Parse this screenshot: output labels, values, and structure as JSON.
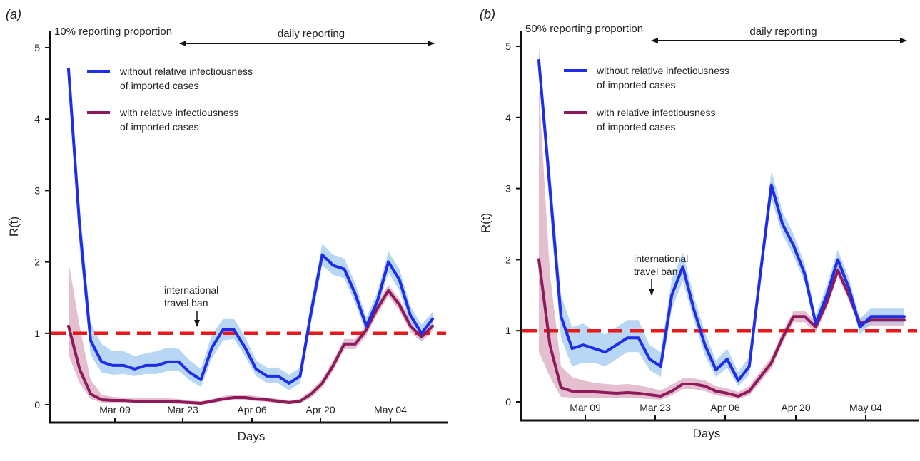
{
  "chart_data": [
    {
      "type": "line",
      "panel_label": "a",
      "title": "10% reporting proportion",
      "xlabel": "Days",
      "ylabel": "R(t)",
      "x_ticks": [
        "Mar 09",
        "Mar 23",
        "Apr 06",
        "Apr 20",
        "May 04"
      ],
      "y_ticks": [
        0,
        1,
        2,
        3,
        4,
        5
      ],
      "ylim": [
        0,
        5
      ],
      "x": [
        0,
        2,
        4,
        6,
        8,
        10,
        12,
        14,
        16,
        18,
        20,
        22,
        24,
        26,
        28,
        30,
        32,
        34,
        36,
        38,
        40,
        42,
        44,
        46,
        48,
        50,
        52,
        54,
        56,
        58,
        60,
        62,
        64,
        66
      ],
      "reference_line": {
        "y": 1,
        "style": "dashed",
        "color": "#e8191b"
      },
      "annotations": [
        {
          "text_lines": [
            "international",
            "travel ban"
          ],
          "x": 23
        },
        {
          "text": "daily reporting",
          "x_from": 23,
          "x_to": 65,
          "style": "double-arrow"
        }
      ],
      "series": [
        {
          "name_lines": [
            "without relative infectiousness",
            "of imported cases"
          ],
          "color": "#1f2de8",
          "band_color": "#9fcaf0",
          "values": [
            4.7,
            2.5,
            0.9,
            0.6,
            0.55,
            0.55,
            0.5,
            0.55,
            0.55,
            0.6,
            0.6,
            0.45,
            0.35,
            0.8,
            1.05,
            1.05,
            0.8,
            0.5,
            0.4,
            0.4,
            0.3,
            0.4,
            1.3,
            2.1,
            1.95,
            1.9,
            1.55,
            1.1,
            1.45,
            2.0,
            1.75,
            1.25,
            1.0,
            1.2
          ],
          "band_low": [
            4.5,
            2.2,
            0.7,
            0.45,
            0.42,
            0.43,
            0.4,
            0.43,
            0.43,
            0.47,
            0.47,
            0.34,
            0.25,
            0.65,
            0.9,
            0.92,
            0.68,
            0.4,
            0.3,
            0.3,
            0.2,
            0.3,
            1.15,
            1.95,
            1.82,
            1.77,
            1.42,
            1.0,
            1.33,
            1.85,
            1.6,
            1.12,
            0.9,
            1.1
          ],
          "band_high": [
            4.9,
            2.8,
            1.15,
            0.85,
            0.75,
            0.75,
            0.68,
            0.72,
            0.75,
            0.8,
            0.78,
            0.62,
            0.5,
            0.98,
            1.2,
            1.2,
            0.95,
            0.62,
            0.52,
            0.52,
            0.42,
            0.52,
            1.45,
            2.25,
            2.1,
            2.05,
            1.7,
            1.22,
            1.58,
            2.15,
            1.9,
            1.38,
            1.12,
            1.3
          ]
        },
        {
          "name_lines": [
            "with relative infectiousness",
            "of imported cases"
          ],
          "color": "#8e1a5c",
          "band_color": "#d9a9bf",
          "values": [
            1.1,
            0.5,
            0.15,
            0.07,
            0.06,
            0.06,
            0.05,
            0.05,
            0.05,
            0.05,
            0.04,
            0.03,
            0.02,
            0.05,
            0.08,
            0.1,
            0.1,
            0.08,
            0.07,
            0.05,
            0.03,
            0.05,
            0.15,
            0.3,
            0.55,
            0.85,
            0.85,
            1.05,
            1.35,
            1.6,
            1.4,
            1.1,
            0.95,
            1.1
          ],
          "band_low": [
            0.7,
            0.3,
            0.08,
            0.03,
            0.03,
            0.03,
            0.02,
            0.02,
            0.02,
            0.02,
            0.01,
            0.01,
            0.0,
            0.02,
            0.05,
            0.07,
            0.07,
            0.05,
            0.04,
            0.02,
            0.01,
            0.02,
            0.1,
            0.24,
            0.48,
            0.78,
            0.78,
            0.97,
            1.27,
            1.52,
            1.32,
            1.02,
            0.88,
            1.03
          ],
          "band_high": [
            2.0,
            1.1,
            0.35,
            0.14,
            0.11,
            0.1,
            0.09,
            0.09,
            0.09,
            0.09,
            0.08,
            0.06,
            0.05,
            0.08,
            0.12,
            0.14,
            0.14,
            0.12,
            0.1,
            0.08,
            0.06,
            0.08,
            0.2,
            0.36,
            0.62,
            0.92,
            0.92,
            1.13,
            1.43,
            1.68,
            1.48,
            1.18,
            1.02,
            1.17
          ]
        }
      ]
    },
    {
      "type": "line",
      "panel_label": "b",
      "title": "50% reporting proportion",
      "xlabel": "Days",
      "ylabel": "R(t)",
      "x_ticks": [
        "Mar 09",
        "Mar 23",
        "Apr 06",
        "Apr 20",
        "May 04"
      ],
      "y_ticks": [
        0,
        1,
        2,
        3,
        4,
        5
      ],
      "ylim": [
        0,
        5
      ],
      "x": [
        0,
        2,
        4,
        6,
        8,
        10,
        12,
        14,
        16,
        18,
        20,
        22,
        24,
        26,
        28,
        30,
        32,
        34,
        36,
        38,
        40,
        42,
        44,
        46,
        48,
        50,
        52,
        54,
        56,
        58,
        60,
        62,
        64,
        66
      ],
      "reference_line": {
        "y": 1,
        "style": "dashed",
        "color": "#e8191b"
      },
      "annotations": [
        {
          "text_lines": [
            "international",
            "travel ban"
          ],
          "x": 23
        },
        {
          "text": "daily reporting",
          "x_from": 23,
          "x_to": 65,
          "style": "double-arrow"
        }
      ],
      "series": [
        {
          "name_lines": [
            "without relative infectiousness",
            "of imported cases"
          ],
          "color": "#1f2de8",
          "band_color": "#9fcaf0",
          "values": [
            4.8,
            3.0,
            1.2,
            0.75,
            0.8,
            0.75,
            0.7,
            0.8,
            0.9,
            0.9,
            0.6,
            0.5,
            1.5,
            1.9,
            1.3,
            0.8,
            0.45,
            0.6,
            0.3,
            0.5,
            1.8,
            3.05,
            2.5,
            2.2,
            1.8,
            1.1,
            1.5,
            2.0,
            1.6,
            1.05,
            1.2,
            1.2,
            1.2,
            1.2
          ],
          "band_low": [
            4.6,
            2.7,
            0.9,
            0.5,
            0.55,
            0.55,
            0.5,
            0.6,
            0.7,
            0.7,
            0.45,
            0.35,
            1.3,
            1.7,
            1.15,
            0.65,
            0.35,
            0.48,
            0.22,
            0.38,
            1.65,
            2.85,
            2.35,
            2.05,
            1.68,
            1.0,
            1.38,
            1.86,
            1.48,
            0.95,
            1.1,
            1.1,
            1.1,
            1.1
          ],
          "band_high": [
            5.0,
            3.3,
            1.5,
            1.05,
            1.1,
            1.0,
            0.95,
            1.05,
            1.15,
            1.15,
            0.8,
            0.7,
            1.72,
            2.1,
            1.48,
            0.98,
            0.58,
            0.75,
            0.42,
            0.64,
            1.95,
            3.25,
            2.67,
            2.36,
            1.94,
            1.22,
            1.64,
            2.14,
            1.74,
            1.17,
            1.32,
            1.32,
            1.32,
            1.32
          ]
        },
        {
          "name_lines": [
            "with relative infectiousness",
            "of imported cases"
          ],
          "color": "#8e1a5c",
          "band_color": "#d9a9bf",
          "values": [
            2.0,
            0.8,
            0.2,
            0.15,
            0.15,
            0.14,
            0.13,
            0.12,
            0.13,
            0.12,
            0.1,
            0.08,
            0.15,
            0.25,
            0.25,
            0.22,
            0.15,
            0.12,
            0.08,
            0.15,
            0.35,
            0.55,
            0.9,
            1.2,
            1.2,
            1.05,
            1.4,
            1.85,
            1.5,
            1.1,
            1.15,
            1.15,
            1.15,
            1.15
          ],
          "band_low": [
            0.7,
            0.35,
            0.07,
            0.06,
            0.06,
            0.06,
            0.05,
            0.05,
            0.06,
            0.05,
            0.04,
            0.03,
            0.09,
            0.18,
            0.18,
            0.15,
            0.09,
            0.07,
            0.04,
            0.09,
            0.28,
            0.47,
            0.82,
            1.12,
            1.12,
            0.97,
            1.32,
            1.77,
            1.42,
            1.02,
            1.07,
            1.07,
            1.07,
            1.07
          ],
          "band_high": [
            4.4,
            1.8,
            0.5,
            0.35,
            0.3,
            0.27,
            0.25,
            0.24,
            0.25,
            0.23,
            0.2,
            0.16,
            0.24,
            0.33,
            0.33,
            0.3,
            0.22,
            0.19,
            0.14,
            0.22,
            0.43,
            0.63,
            0.98,
            1.28,
            1.28,
            1.13,
            1.48,
            1.93,
            1.58,
            1.18,
            1.23,
            1.23,
            1.23,
            1.23
          ]
        }
      ]
    }
  ]
}
